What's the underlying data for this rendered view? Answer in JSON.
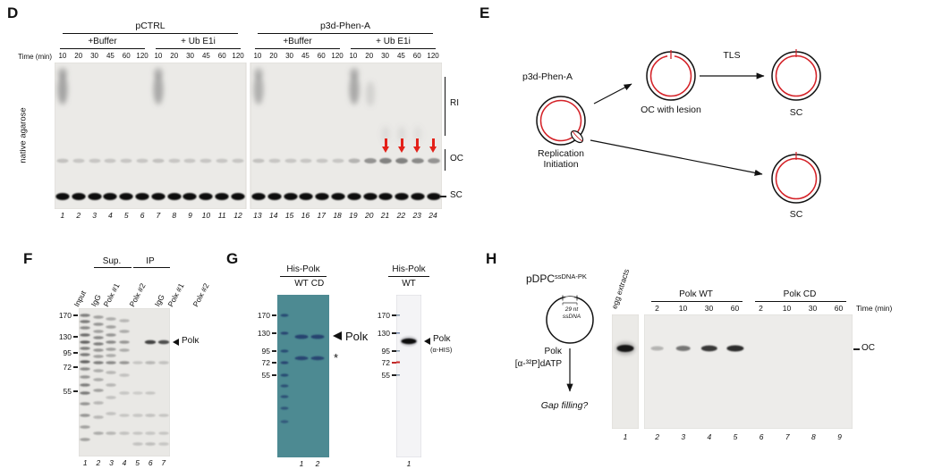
{
  "panel_d": {
    "label": "D",
    "gel1_title": "pCTRL",
    "gel2_title": "p3d-Phen-A",
    "cond1": "+Buffer",
    "cond2": "+ Ub E1i",
    "time_label": "Time (min)",
    "times": [
      "10",
      "20",
      "30",
      "45",
      "60",
      "120"
    ],
    "side_label": "native agarose",
    "marker_ri": "RI",
    "marker_oc": "OC",
    "marker_sc": "SC",
    "lanes_gel1": [
      "1",
      "2",
      "3",
      "4",
      "5",
      "6",
      "7",
      "8",
      "9",
      "10",
      "11",
      "12"
    ],
    "lanes_gel2": [
      "13",
      "14",
      "15",
      "16",
      "17",
      "18",
      "19",
      "20",
      "21",
      "22",
      "23",
      "24"
    ]
  },
  "panel_e": {
    "label": "E",
    "plasmid_label": "p3d-Phen-A",
    "init_label": "Replication Initiation",
    "oc_label": "OC with lesion",
    "tls_label": "TLS",
    "sc_top_label": "SC",
    "sc_bottom_label": "SC"
  },
  "panel_f": {
    "label": "F",
    "group_sup": "Sup.",
    "group_ip": "IP",
    "lane_labels": [
      "Input",
      "IgG",
      "Polκ #1",
      "Polκ #2",
      "IgG",
      "Polκ #1",
      "Polκ #2"
    ],
    "mw": [
      "170",
      "130",
      "95",
      "72",
      "55"
    ],
    "band_label": "Polκ",
    "lanes": [
      "1",
      "2",
      "3",
      "4",
      "5",
      "6",
      "7"
    ]
  },
  "panel_g": {
    "label": "G",
    "gel_title": "His-Polκ",
    "gel_lane1": "WT",
    "gel_lane2": "CD",
    "blot_title": "His-Polκ",
    "blot_lane1": "WT",
    "mw": [
      "170",
      "130",
      "95",
      "72",
      "55"
    ],
    "band_label": "Polκ",
    "asterisk": "*",
    "blot_band_label": "Polκ",
    "blot_band_sub": "(α-HIS)",
    "gel_lanes": [
      "1",
      "2"
    ],
    "blot_lanes": [
      "1"
    ]
  },
  "panel_h": {
    "label": "H",
    "plasmid_name": "pDPC",
    "plasmid_sup": "ssDNA-PK",
    "insert_line1": "29 nt",
    "insert_line2": "ssDNA",
    "enzyme": "Polκ",
    "nucleotide": "[α-³²P]dATP",
    "question": "Gap filling?",
    "extract_label": "egg extracts",
    "group_wt": "Polκ WT",
    "group_cd": "Polκ CD",
    "times": [
      "2",
      "10",
      "30",
      "60"
    ],
    "time_label": "Time (min)",
    "oc_label": "OC",
    "extract_lane": "1",
    "lanes": [
      "2",
      "3",
      "4",
      "5",
      "6",
      "7",
      "8",
      "9"
    ]
  }
}
